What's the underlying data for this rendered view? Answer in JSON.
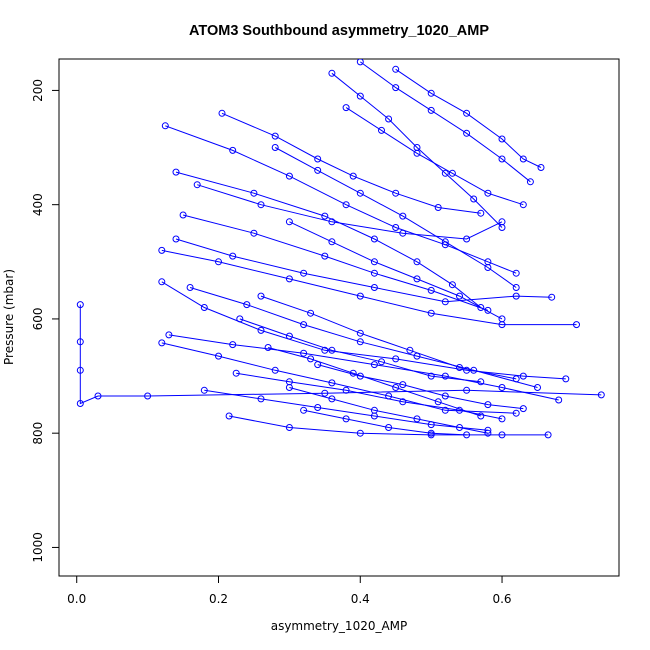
{
  "chart_data": {
    "type": "line",
    "title": "ATOM3 Southbound asymmetry_1020_AMP",
    "xlabel": "asymmetry_1020_AMP",
    "ylabel": "Pressure (mbar)",
    "xlim": [
      -0.025,
      0.765
    ],
    "ylim": [
      1050,
      145
    ],
    "y_inverted": true,
    "x_ticks": [
      0.0,
      0.2,
      0.4,
      0.6
    ],
    "x_tick_labels": [
      "0.0",
      "0.2",
      "0.4",
      "0.6"
    ],
    "y_ticks": [
      200,
      400,
      600,
      800,
      1000
    ],
    "y_tick_labels": [
      "200",
      "400",
      "600",
      "800",
      "1000"
    ],
    "series_color": "#0000ff",
    "marker": "open-circle",
    "grid": false,
    "legend": "none",
    "series": [
      {
        "points": [
          [
            0.005,
            575
          ],
          [
            0.005,
            640
          ],
          [
            0.005,
            690
          ],
          [
            0.005,
            748
          ],
          [
            0.03,
            735
          ],
          [
            0.1,
            735
          ],
          [
            0.35,
            730
          ],
          [
            0.55,
            725
          ],
          [
            0.74,
            733
          ]
        ]
      },
      {
        "points": [
          [
            0.215,
            770
          ],
          [
            0.3,
            790
          ],
          [
            0.4,
            800
          ],
          [
            0.5,
            803
          ],
          [
            0.6,
            803
          ],
          [
            0.665,
            803
          ]
        ]
      },
      {
        "points": [
          [
            0.12,
            535
          ],
          [
            0.18,
            580
          ],
          [
            0.26,
            620
          ],
          [
            0.35,
            655
          ],
          [
            0.45,
            670
          ],
          [
            0.55,
            690
          ],
          [
            0.63,
            700
          ],
          [
            0.69,
            705
          ]
        ]
      },
      {
        "points": [
          [
            0.125,
            262
          ],
          [
            0.22,
            305
          ],
          [
            0.3,
            350
          ],
          [
            0.38,
            400
          ],
          [
            0.45,
            440
          ],
          [
            0.52,
            470
          ],
          [
            0.58,
            500
          ],
          [
            0.62,
            520
          ]
        ]
      },
      {
        "points": [
          [
            0.14,
            343
          ],
          [
            0.25,
            380
          ],
          [
            0.35,
            420
          ],
          [
            0.42,
            460
          ],
          [
            0.48,
            500
          ],
          [
            0.53,
            540
          ],
          [
            0.57,
            580
          ]
        ]
      },
      {
        "points": [
          [
            0.12,
            480
          ],
          [
            0.2,
            500
          ],
          [
            0.3,
            530
          ],
          [
            0.4,
            560
          ],
          [
            0.5,
            590
          ],
          [
            0.6,
            610
          ],
          [
            0.705,
            610
          ]
        ]
      },
      {
        "points": [
          [
            0.14,
            460
          ],
          [
            0.22,
            490
          ],
          [
            0.32,
            520
          ],
          [
            0.42,
            545
          ],
          [
            0.52,
            570
          ],
          [
            0.62,
            560
          ],
          [
            0.67,
            562
          ]
        ]
      },
      {
        "points": [
          [
            0.205,
            240
          ],
          [
            0.28,
            280
          ],
          [
            0.34,
            320
          ],
          [
            0.39,
            350
          ],
          [
            0.45,
            380
          ],
          [
            0.51,
            405
          ],
          [
            0.57,
            415
          ]
        ]
      },
      {
        "points": [
          [
            0.17,
            365
          ],
          [
            0.26,
            400
          ],
          [
            0.36,
            430
          ],
          [
            0.46,
            450
          ],
          [
            0.55,
            460
          ],
          [
            0.6,
            430
          ]
        ]
      },
      {
        "points": [
          [
            0.15,
            418
          ],
          [
            0.25,
            450
          ],
          [
            0.35,
            490
          ],
          [
            0.42,
            520
          ],
          [
            0.5,
            550
          ],
          [
            0.58,
            585
          ]
        ]
      },
      {
        "points": [
          [
            0.13,
            628
          ],
          [
            0.22,
            645
          ],
          [
            0.32,
            660
          ],
          [
            0.42,
            680
          ],
          [
            0.52,
            700
          ],
          [
            0.6,
            720
          ],
          [
            0.68,
            742
          ]
        ]
      },
      {
        "points": [
          [
            0.12,
            642
          ],
          [
            0.2,
            665
          ],
          [
            0.28,
            690
          ],
          [
            0.36,
            712
          ],
          [
            0.44,
            735
          ],
          [
            0.52,
            760
          ],
          [
            0.62,
            765
          ]
        ]
      },
      {
        "points": [
          [
            0.16,
            545
          ],
          [
            0.24,
            575
          ],
          [
            0.32,
            610
          ],
          [
            0.4,
            640
          ],
          [
            0.48,
            665
          ],
          [
            0.56,
            690
          ],
          [
            0.65,
            720
          ]
        ]
      },
      {
        "points": [
          [
            0.18,
            725
          ],
          [
            0.26,
            740
          ],
          [
            0.34,
            755
          ],
          [
            0.42,
            770
          ],
          [
            0.5,
            785
          ],
          [
            0.58,
            795
          ]
        ]
      },
      {
        "points": [
          [
            0.225,
            695
          ],
          [
            0.3,
            710
          ],
          [
            0.38,
            725
          ],
          [
            0.46,
            745
          ],
          [
            0.54,
            760
          ],
          [
            0.6,
            775
          ]
        ]
      },
      {
        "points": [
          [
            0.26,
            560
          ],
          [
            0.33,
            590
          ],
          [
            0.4,
            625
          ],
          [
            0.47,
            655
          ],
          [
            0.54,
            685
          ],
          [
            0.62,
            705
          ]
        ]
      },
      {
        "points": [
          [
            0.28,
            300
          ],
          [
            0.34,
            340
          ],
          [
            0.4,
            380
          ],
          [
            0.46,
            420
          ],
          [
            0.52,
            465
          ],
          [
            0.58,
            510
          ],
          [
            0.62,
            545
          ]
        ]
      },
      {
        "points": [
          [
            0.36,
            170
          ],
          [
            0.4,
            210
          ],
          [
            0.44,
            250
          ],
          [
            0.48,
            300
          ],
          [
            0.52,
            345
          ],
          [
            0.56,
            390
          ],
          [
            0.6,
            440
          ]
        ]
      },
      {
        "points": [
          [
            0.4,
            150
          ],
          [
            0.45,
            195
          ],
          [
            0.5,
            235
          ],
          [
            0.55,
            275
          ],
          [
            0.6,
            320
          ],
          [
            0.64,
            360
          ]
        ]
      },
      {
        "points": [
          [
            0.3,
            720
          ],
          [
            0.36,
            740
          ],
          [
            0.42,
            760
          ],
          [
            0.48,
            775
          ],
          [
            0.54,
            790
          ],
          [
            0.58,
            800
          ]
        ]
      },
      {
        "points": [
          [
            0.27,
            650
          ],
          [
            0.33,
            670
          ],
          [
            0.39,
            695
          ],
          [
            0.45,
            720
          ],
          [
            0.51,
            745
          ],
          [
            0.57,
            770
          ]
        ]
      },
      {
        "points": [
          [
            0.32,
            760
          ],
          [
            0.38,
            775
          ],
          [
            0.44,
            790
          ],
          [
            0.5,
            800
          ],
          [
            0.55,
            803
          ]
        ]
      },
      {
        "points": [
          [
            0.45,
            163
          ],
          [
            0.5,
            205
          ],
          [
            0.55,
            240
          ],
          [
            0.6,
            285
          ],
          [
            0.63,
            320
          ],
          [
            0.655,
            335
          ]
        ]
      },
      {
        "points": [
          [
            0.38,
            230
          ],
          [
            0.43,
            270
          ],
          [
            0.48,
            310
          ],
          [
            0.53,
            345
          ],
          [
            0.58,
            380
          ],
          [
            0.63,
            400
          ]
        ]
      },
      {
        "points": [
          [
            0.3,
            430
          ],
          [
            0.36,
            465
          ],
          [
            0.42,
            500
          ],
          [
            0.48,
            530
          ],
          [
            0.54,
            560
          ],
          [
            0.6,
            600
          ]
        ]
      },
      {
        "points": [
          [
            0.23,
            600
          ],
          [
            0.3,
            630
          ],
          [
            0.36,
            655
          ],
          [
            0.43,
            675
          ],
          [
            0.5,
            700
          ],
          [
            0.57,
            710
          ]
        ]
      },
      {
        "points": [
          [
            0.34,
            680
          ],
          [
            0.4,
            700
          ],
          [
            0.46,
            715
          ],
          [
            0.52,
            735
          ],
          [
            0.58,
            750
          ],
          [
            0.63,
            757
          ]
        ]
      }
    ]
  }
}
